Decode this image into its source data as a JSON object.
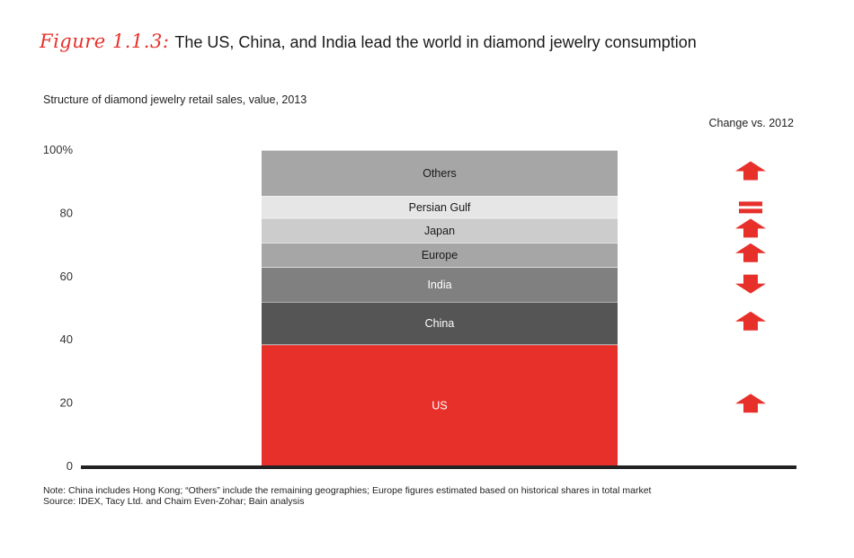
{
  "header": {
    "figure_label": "Figure 1.1.3:",
    "title": "The US, China, and India lead the world in diamond jewelry consumption"
  },
  "subtitle": "Structure of diamond jewelry retail sales, value, 2013",
  "change_header": "Change vs. 2012",
  "notes": {
    "note": "Note:  China includes Hong Kong; “Others” include the remaining geographies; Europe figures estimated based on historical shares in total market",
    "source": "Source:  IDEX, Tacy Ltd. and Chaim Even-Zohar; Bain analysis"
  },
  "colors": {
    "accent": "#e8302a",
    "axis": "#222222"
  },
  "chart_data": {
    "type": "bar",
    "stacked": true,
    "ylim": [
      0,
      100
    ],
    "yticks": [
      {
        "value": 0,
        "label": "0"
      },
      {
        "value": 20,
        "label": "20"
      },
      {
        "value": 40,
        "label": "40"
      },
      {
        "value": 60,
        "label": "60"
      },
      {
        "value": 80,
        "label": "80"
      },
      {
        "value": 100,
        "label": "100%"
      }
    ],
    "series": [
      {
        "name": "US",
        "value": 38.5,
        "color": "#e8302a",
        "text_color": "#ffffff",
        "change": "up"
      },
      {
        "name": "China",
        "value": 13.5,
        "color": "#555555",
        "text_color": "#ffffff",
        "change": "up"
      },
      {
        "name": "India",
        "value": 11.0,
        "color": "#808080",
        "text_color": "#ffffff",
        "change": "down"
      },
      {
        "name": "Europe",
        "value": 7.7,
        "color": "#a6a6a6",
        "text_color": "#1a1a1a",
        "change": "up"
      },
      {
        "name": "Japan",
        "value": 7.8,
        "color": "#cccccc",
        "text_color": "#1a1a1a",
        "change": "up"
      },
      {
        "name": "Persian Gulf",
        "value": 7.0,
        "color": "#e6e6e6",
        "text_color": "#1a1a1a",
        "change": "flat"
      },
      {
        "name": "Others",
        "value": 14.5,
        "color": "#a6a6a6",
        "text_color": "#1a1a1a",
        "change": "up"
      }
    ]
  }
}
